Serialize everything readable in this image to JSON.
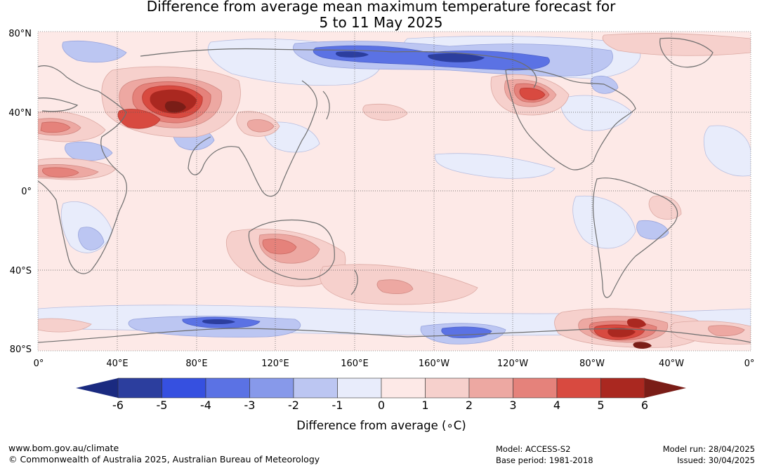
{
  "title_line1": "Difference from average mean maximum temperature forecast for",
  "title_line2": "5 to 11 May 2025",
  "map": {
    "lat_labels": [
      "80°N",
      "40°N",
      "0°",
      "40°S",
      "80°S"
    ],
    "lon_labels": [
      "0°",
      "40°E",
      "80°E",
      "120°E",
      "160°E",
      "160°W",
      "120°W",
      "80°W",
      "40°W",
      "0°"
    ]
  },
  "colorbar": {
    "label": "Difference from average (∘C)",
    "ticks": [
      "-6",
      "-5",
      "-4",
      "-3",
      "-2",
      "-1",
      "0",
      "1",
      "2",
      "3",
      "4",
      "5",
      "6"
    ],
    "colors": [
      "#2c3e9e",
      "#3650e0",
      "#5b72e4",
      "#8799ea",
      "#bcc6f2",
      "#e8ecfb",
      "#fde9e7",
      "#f6d0cc",
      "#eda8a2",
      "#e5827b",
      "#d84a40",
      "#aa2820"
    ],
    "under_color": "#1a2a80",
    "over_color": "#7a1d17"
  },
  "footer": {
    "website": "www.bom.gov.au/climate",
    "copyright": "© Commonwealth of Australia 2025, Australian Bureau of Meteorology",
    "model": "Model: ACCESS-S2",
    "base_period": "Base period: 1981-2018",
    "model_run": "Model run: 28/04/2025",
    "issued": "Issued: 30/04/2025"
  }
}
